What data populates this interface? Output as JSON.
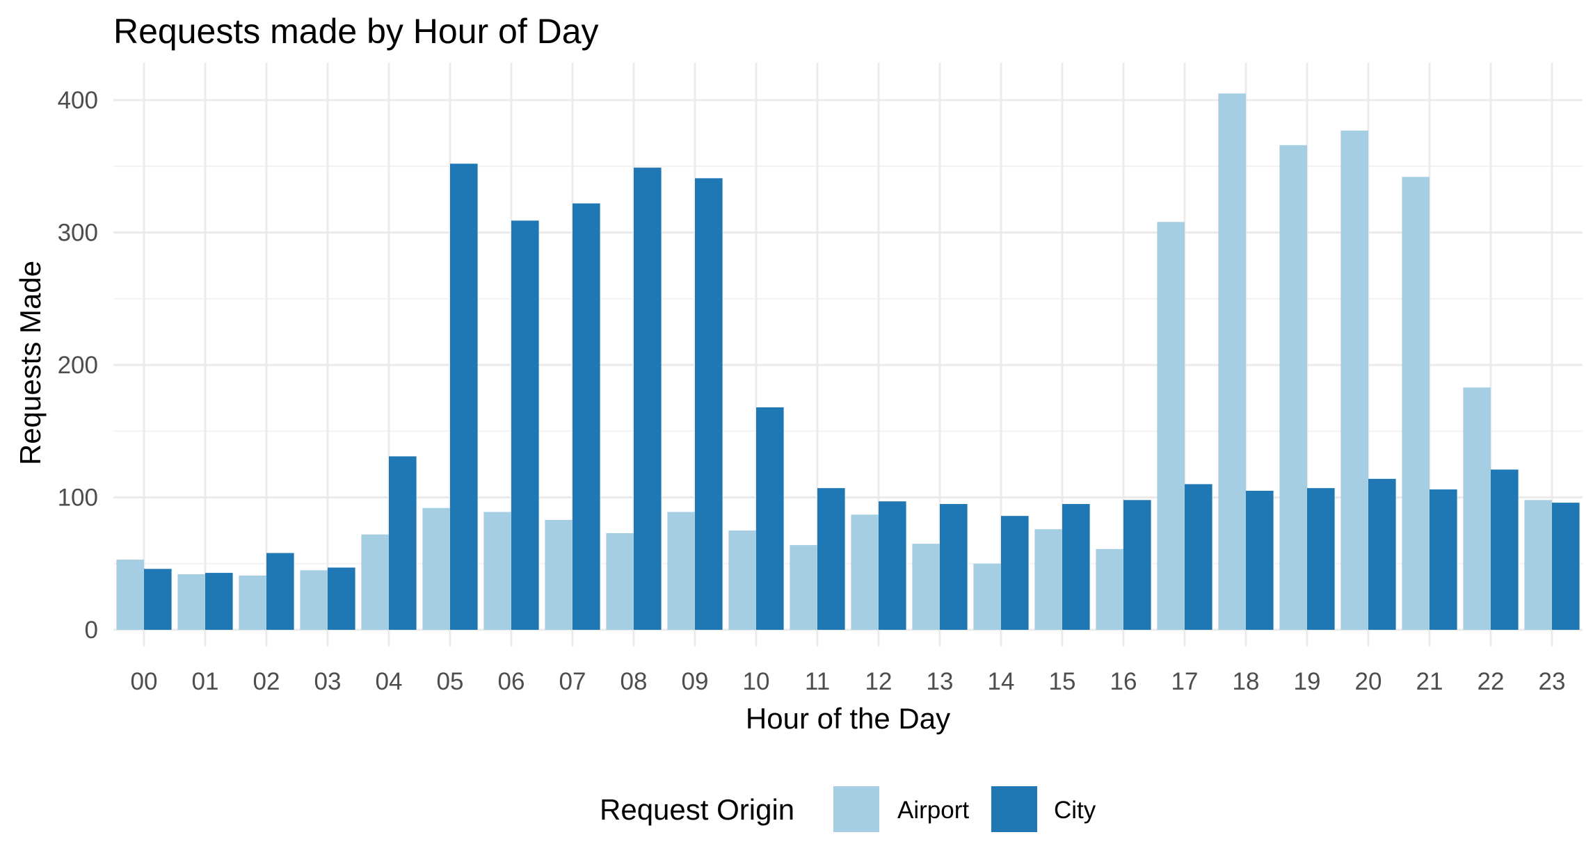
{
  "chart_data": {
    "type": "bar",
    "title": "Requests made by Hour of Day",
    "xlabel": "Hour of the Day",
    "ylabel": "Requests Made",
    "categories": [
      "00",
      "01",
      "02",
      "03",
      "04",
      "05",
      "06",
      "07",
      "08",
      "09",
      "10",
      "11",
      "12",
      "13",
      "14",
      "15",
      "16",
      "17",
      "18",
      "19",
      "20",
      "21",
      "22",
      "23"
    ],
    "yticks": [
      0,
      100,
      200,
      300,
      400
    ],
    "ylim": [
      0,
      425
    ],
    "grid": true,
    "legend": {
      "title": "Request Origin",
      "position": "bottom"
    },
    "series": [
      {
        "name": "Airport",
        "color": "#a6cee3",
        "values": [
          53,
          42,
          41,
          45,
          72,
          92,
          89,
          83,
          73,
          89,
          75,
          64,
          87,
          65,
          50,
          76,
          61,
          308,
          405,
          366,
          377,
          342,
          183,
          98
        ]
      },
      {
        "name": "City",
        "color": "#1f78b4",
        "values": [
          46,
          43,
          58,
          47,
          131,
          352,
          309,
          322,
          349,
          341,
          168,
          107,
          97,
          95,
          86,
          95,
          98,
          110,
          105,
          107,
          114,
          106,
          121,
          96
        ]
      }
    ]
  }
}
